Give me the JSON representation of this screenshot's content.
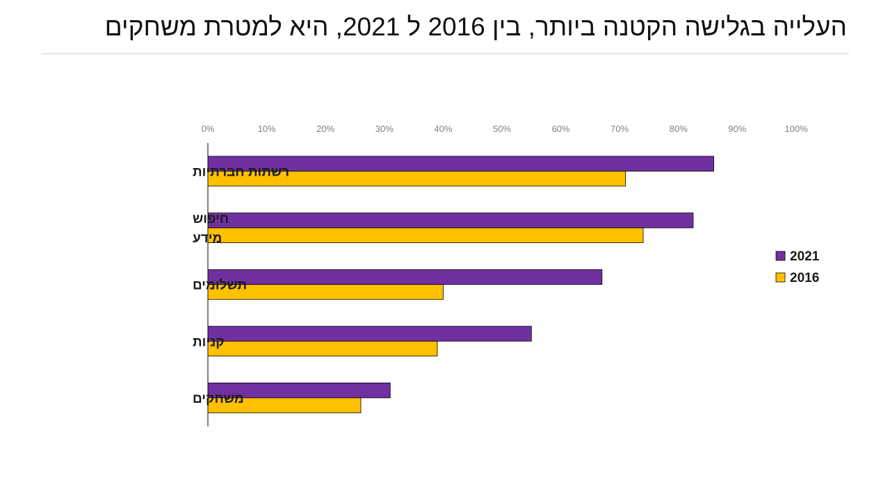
{
  "slide": {
    "title": "העלייה בגלישה הקטנה ביותר, בין 2016 ל 2021, היא למטרת משחקים"
  },
  "chart_data": {
    "type": "bar",
    "orientation": "horizontal",
    "title": "העלייה בגלישה הקטנה ביותר, בין 2016 ל 2021, היא למטרת משחקים",
    "xlabel": "",
    "ylabel": "",
    "xlim": [
      0,
      100
    ],
    "x_ticks": [
      "0%",
      "10%",
      "20%",
      "30%",
      "40%",
      "50%",
      "60%",
      "70%",
      "80%",
      "90%",
      "100%"
    ],
    "axis_position": "top",
    "grid": false,
    "legend_position": "right",
    "categories": [
      [
        "רשתות חברתיות"
      ],
      [
        "חיפוש",
        "מידע"
      ],
      [
        "תשלומים"
      ],
      [
        "קניות"
      ],
      [
        "משחקים"
      ]
    ],
    "series": [
      {
        "name": "2021",
        "color": "#7030a0",
        "values": [
          86,
          82.5,
          67,
          55,
          31
        ]
      },
      {
        "name": "2016",
        "color": "#ffc000",
        "values": [
          71,
          74,
          40,
          39,
          26
        ]
      }
    ]
  }
}
